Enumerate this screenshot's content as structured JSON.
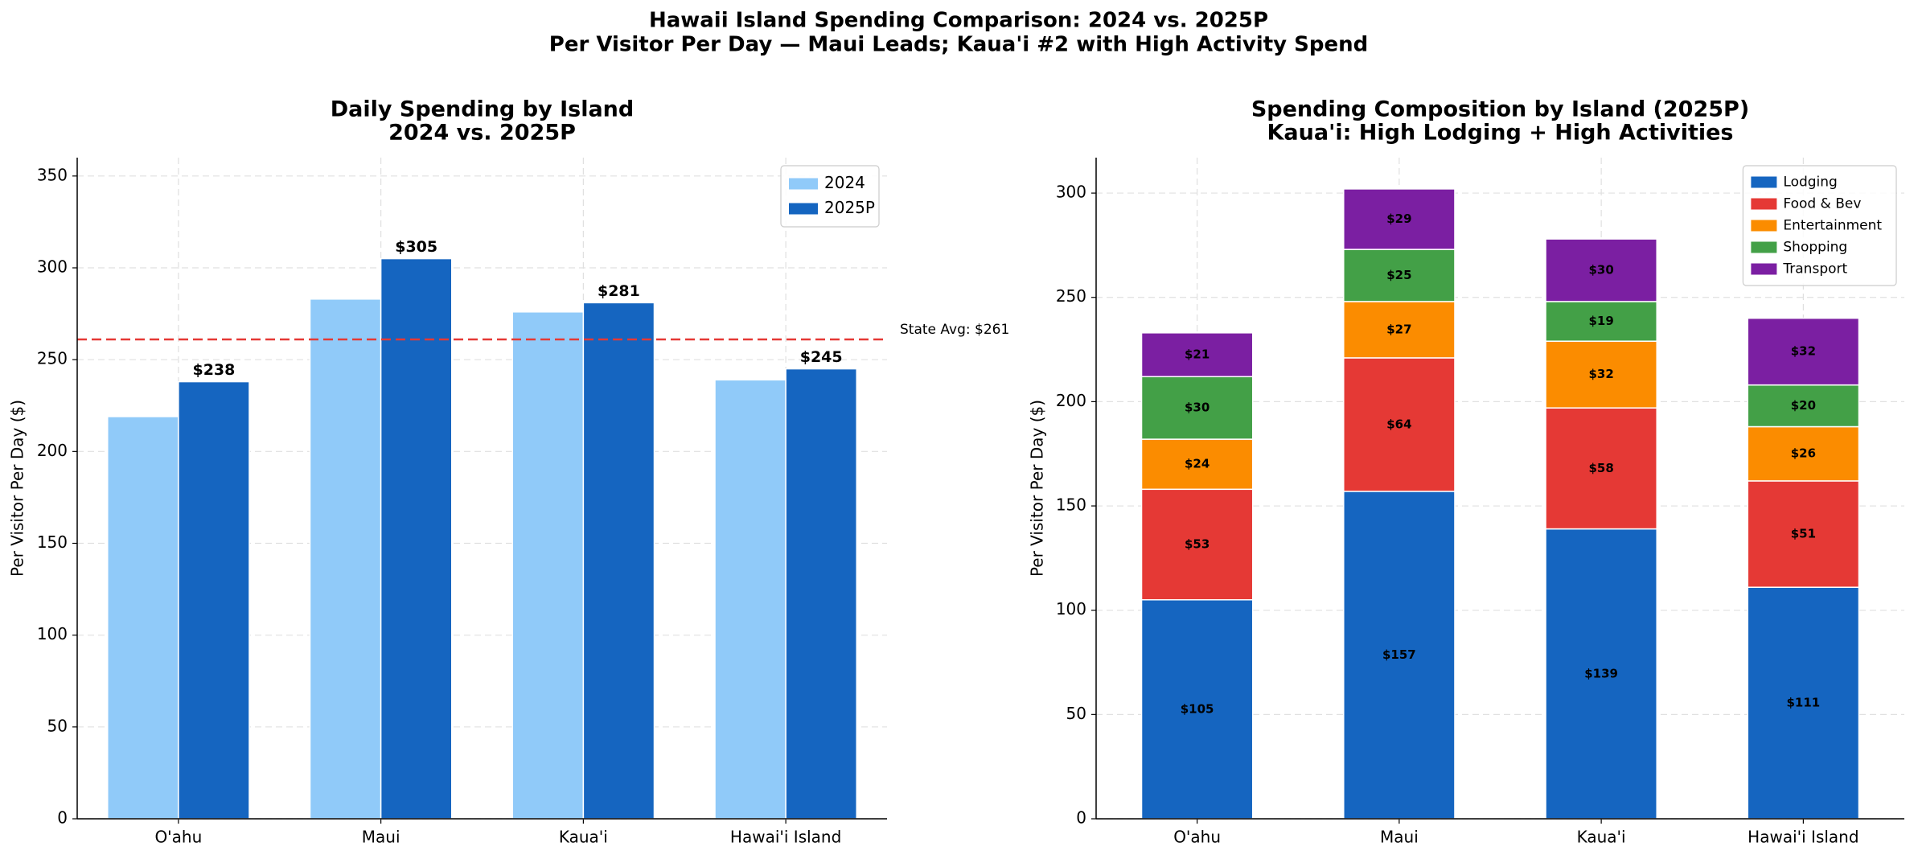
{
  "title": [
    "Hawaii Island Spending Comparison: 2024 vs. 2025P",
    "Per Visitor Per Day — Maui Leads; Kaua'i #2 with High Activity Spend"
  ],
  "chart_data": [
    {
      "type": "bar",
      "stacked": false,
      "title": [
        "Daily Spending by Island",
        "2024 vs. 2025P"
      ],
      "ylabel": "Per Visitor Per Day ($)",
      "categories": [
        "O'ahu",
        "Maui",
        "Kaua'i",
        "Hawai'i Island"
      ],
      "series": [
        {
          "name": "2024",
          "color": "#90caf9",
          "values": [
            219,
            283,
            276,
            239
          ]
        },
        {
          "name": "2025P",
          "color": "#1565c0",
          "values": [
            238,
            305,
            281,
            245
          ],
          "value_labels": [
            "$238",
            "$305",
            "$281",
            "$245"
          ]
        }
      ],
      "reference_line": {
        "value": 261,
        "label": "State Avg: $261",
        "color": "#e53935"
      },
      "ylim": [
        0,
        360
      ],
      "yticks": [
        0,
        50,
        100,
        150,
        200,
        250,
        300,
        350
      ],
      "grid": true,
      "legend": "upper right"
    },
    {
      "type": "bar",
      "stacked": true,
      "title": [
        "Spending Composition by Island (2025P)",
        "Kaua'i: High Lodging + High Activities"
      ],
      "ylabel": "Per Visitor Per Day ($)",
      "categories": [
        "O'ahu",
        "Maui",
        "Kaua'i",
        "Hawai'i Island"
      ],
      "series": [
        {
          "name": "Lodging",
          "color": "#1565c0",
          "values": [
            105,
            157,
            139,
            111
          ],
          "value_labels": [
            "$105",
            "$157",
            "$139",
            "$111"
          ]
        },
        {
          "name": "Food & Bev",
          "color": "#e53935",
          "values": [
            53,
            64,
            58,
            51
          ],
          "value_labels": [
            "$53",
            "$64",
            "$58",
            "$51"
          ]
        },
        {
          "name": "Entertainment",
          "color": "#fb8c00",
          "values": [
            24,
            27,
            32,
            26
          ],
          "value_labels": [
            "$24",
            "$27",
            "$32",
            "$26"
          ]
        },
        {
          "name": "Shopping",
          "color": "#43a047",
          "values": [
            30,
            25,
            19,
            20
          ],
          "value_labels": [
            "$30",
            "$25",
            "$19",
            "$20"
          ]
        },
        {
          "name": "Transport",
          "color": "#7b1fa2",
          "values": [
            21,
            29,
            30,
            32
          ],
          "value_labels": [
            "$21",
            "$29",
            "$30",
            "$32"
          ]
        }
      ],
      "ylim": [
        0,
        317
      ],
      "yticks": [
        0,
        50,
        100,
        150,
        200,
        250,
        300
      ],
      "grid": true,
      "legend": "upper right"
    }
  ]
}
